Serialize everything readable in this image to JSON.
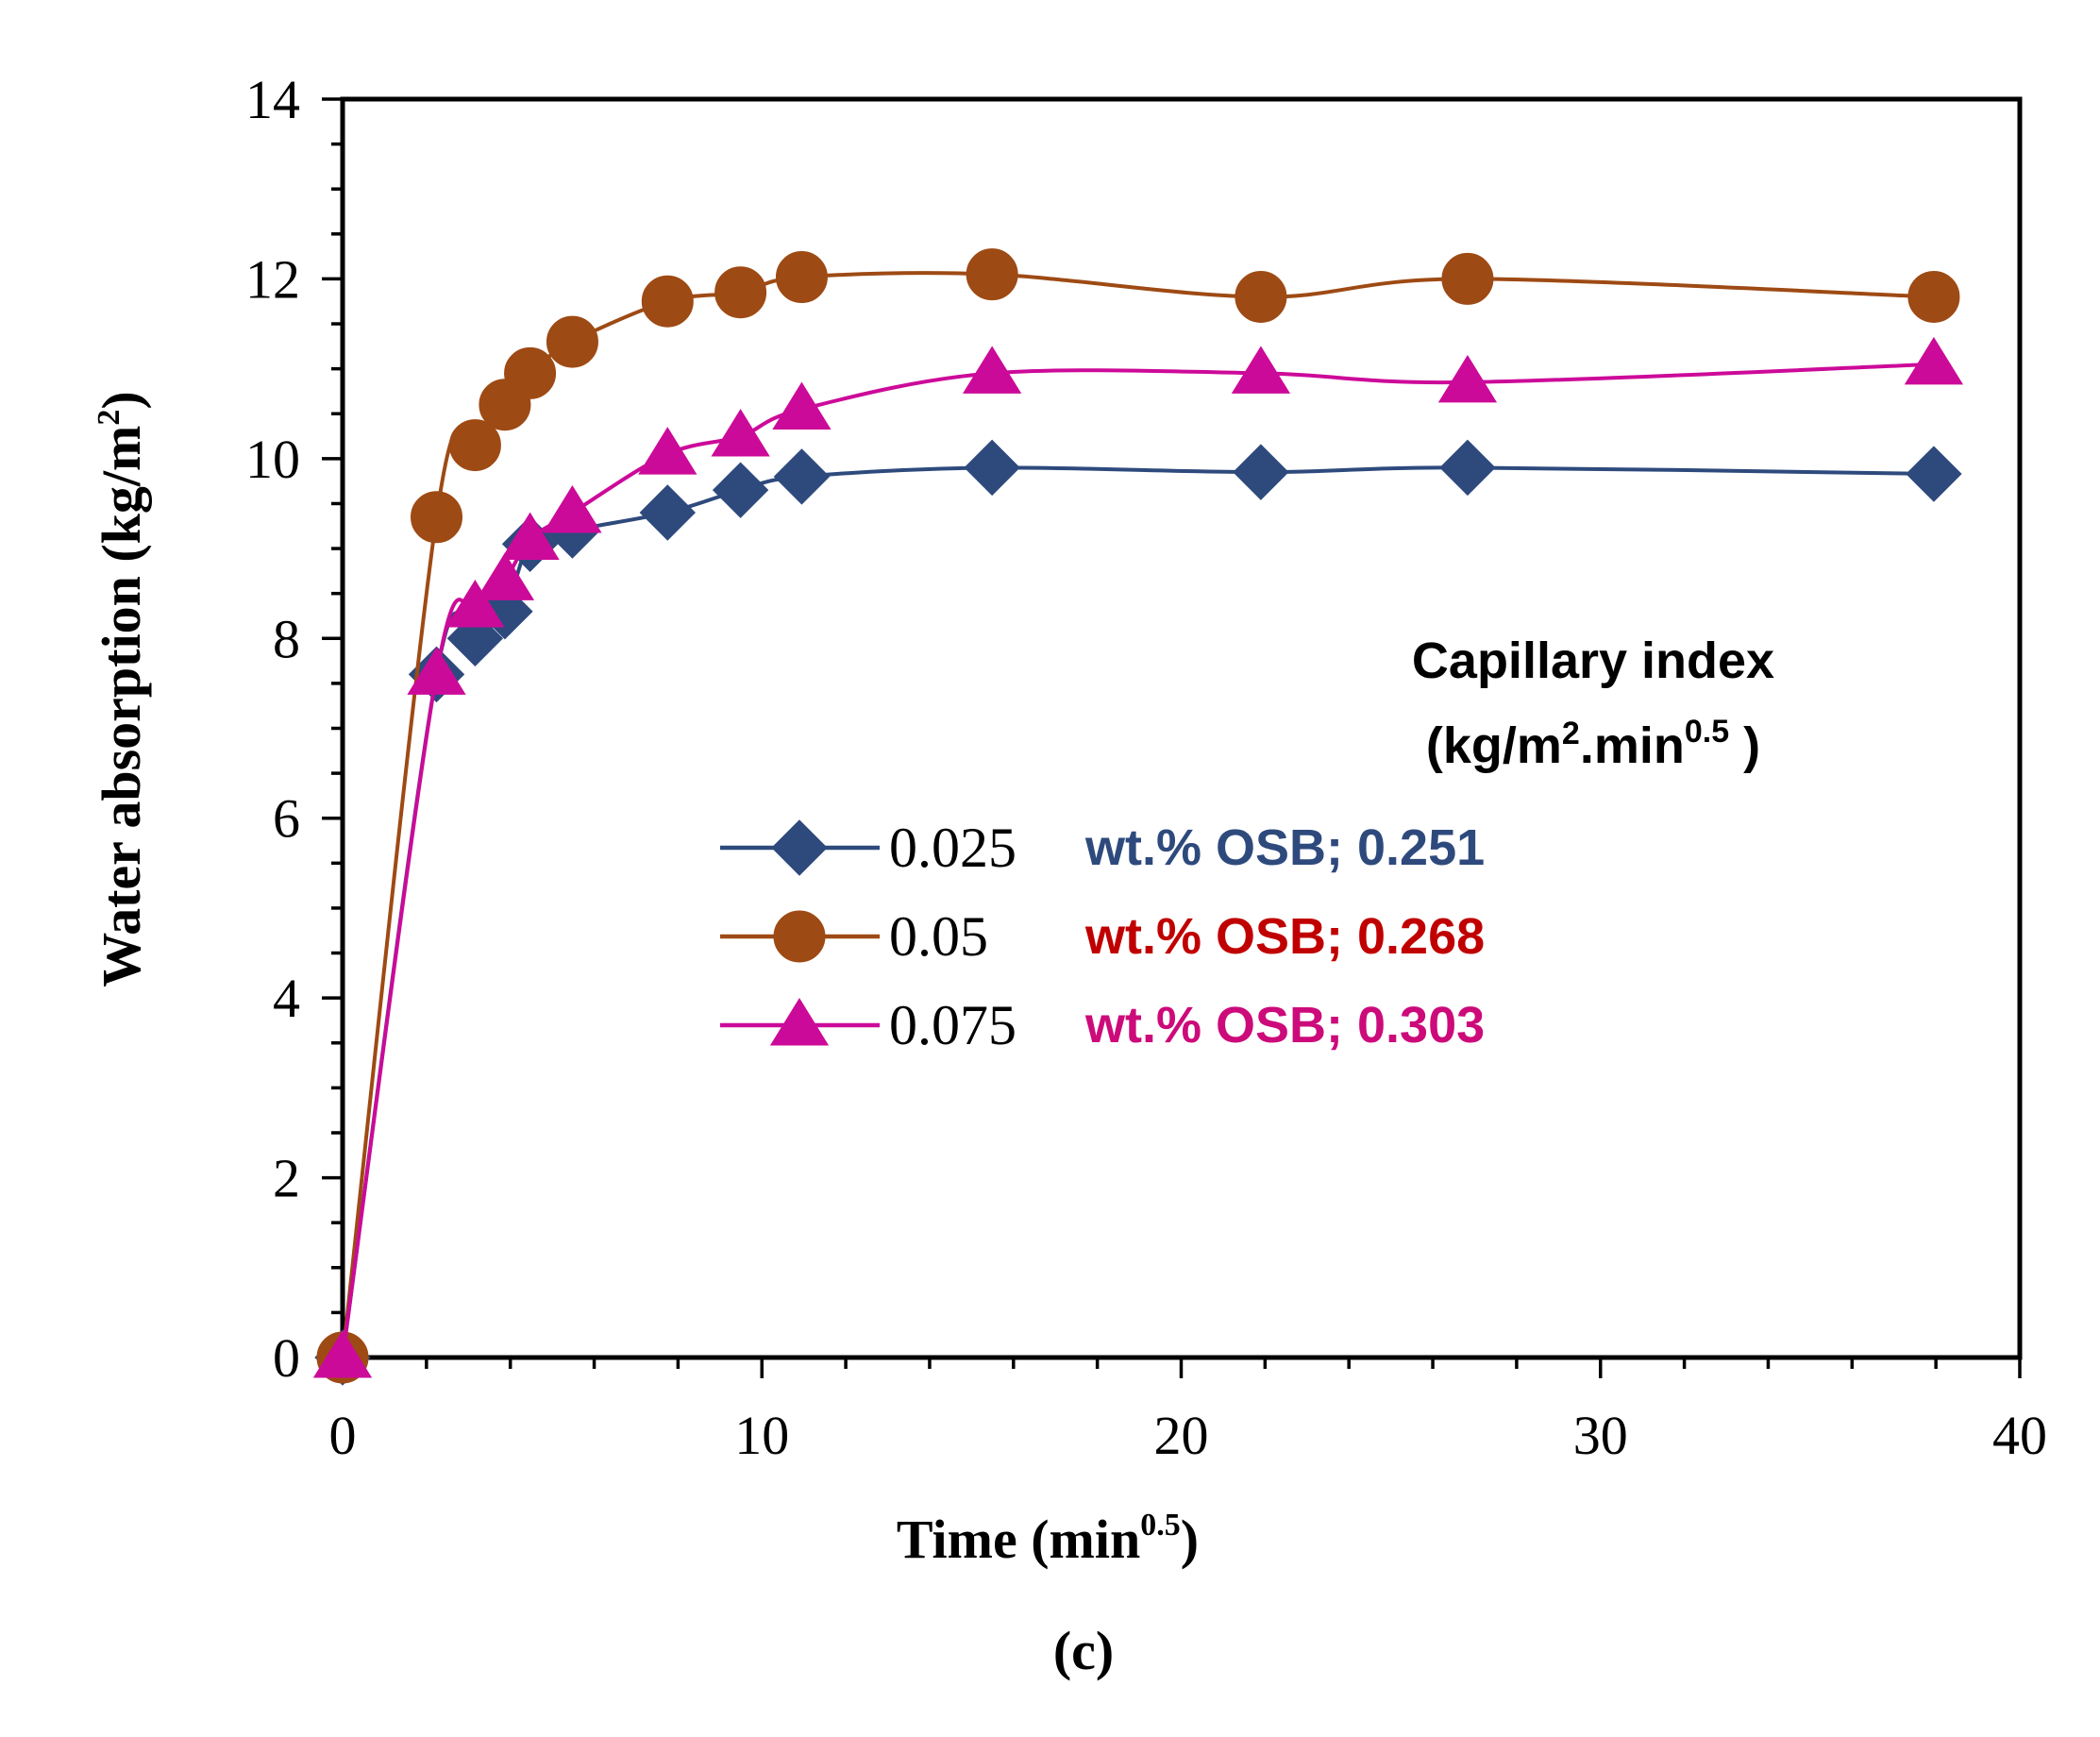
{
  "chart_data": {
    "type": "line",
    "title": "",
    "xlabel": "Time (min",
    "xlabel_sup": "0.5",
    "xlabel_close": ")",
    "ylabel": "Water absorption (kg/m",
    "ylabel_sup": "2",
    "ylabel_close": ")",
    "xlim": [
      0,
      40
    ],
    "ylim": [
      0,
      14
    ],
    "xticks": [
      0,
      10,
      20,
      30,
      40
    ],
    "yticks": [
      0,
      2,
      4,
      6,
      8,
      10,
      12,
      14
    ],
    "grid": false,
    "caption": "(c)",
    "legend_placement": "center-right",
    "annotation": {
      "title": "Capillary index",
      "unit_open": "(kg/m",
      "unit_sup1": "2",
      "unit_mid": ".min",
      "unit_sup2": "0.5",
      "unit_close": " )"
    },
    "series": [
      {
        "name": "0.025",
        "index_label": "wt.% OSB; 0.251",
        "color": "#2E4A7D",
        "label_color": "#2E4A7D",
        "marker": "diamond",
        "x": [
          0,
          2.24,
          3.16,
          3.87,
          4.47,
          5.48,
          7.75,
          9.49,
          10.95,
          15.49,
          21.9,
          26.83,
          37.95
        ],
        "values": [
          0,
          7.6,
          8.0,
          8.3,
          9.05,
          9.2,
          9.4,
          9.65,
          9.8,
          9.9,
          9.85,
          9.9,
          9.83
        ]
      },
      {
        "name": "0.05",
        "index_label": "wt.% OSB; 0.268",
        "color": "#9E4A14",
        "label_color": "#C00000",
        "marker": "circle",
        "x": [
          0,
          2.24,
          3.16,
          3.87,
          4.47,
          5.48,
          7.75,
          9.49,
          10.95,
          15.49,
          21.9,
          26.83,
          37.95
        ],
        "values": [
          0,
          9.35,
          10.15,
          10.6,
          10.95,
          11.3,
          11.75,
          11.85,
          12.02,
          12.05,
          11.8,
          12.0,
          11.8
        ]
      },
      {
        "name": "0.075",
        "index_label": "wt.% OSB; 0.303",
        "color": "#CC0A99",
        "label_color": "#CC0A7A",
        "marker": "triangle",
        "x": [
          0,
          2.24,
          3.16,
          3.87,
          4.47,
          5.48,
          7.75,
          9.49,
          10.95,
          15.49,
          21.9,
          26.83,
          37.95
        ],
        "values": [
          0,
          7.6,
          8.35,
          8.65,
          9.1,
          9.4,
          10.05,
          10.25,
          10.55,
          10.95,
          10.95,
          10.85,
          11.05
        ]
      }
    ]
  }
}
